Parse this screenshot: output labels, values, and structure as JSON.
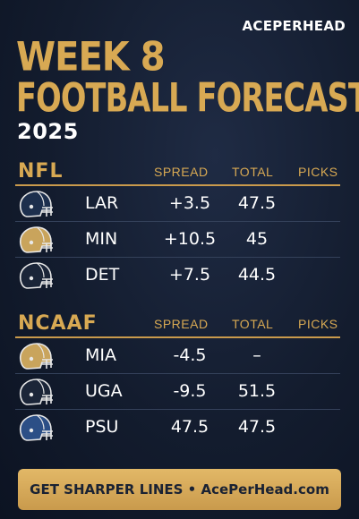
{
  "brand": "ACEPERHEAD",
  "title_line1": "WEEK 8",
  "title_line2": "FOOTBALL FORECAST",
  "year": "2025",
  "columns": {
    "spread": "SPREAD",
    "total": "TOTAL",
    "picks": "PICKS"
  },
  "nfl": {
    "title": "NFL",
    "rows": [
      {
        "team": "LAR",
        "spread": "+3.5",
        "total": "47.5",
        "helmet_color": "#1d2f4d",
        "helmet_icon": "football-helmet-icon"
      },
      {
        "team": "MIN",
        "spread": "+10.5",
        "total": "45",
        "helmet_color": "#c9a45c",
        "helmet_icon": "football-helmet-icon"
      },
      {
        "team": "DET",
        "spread": "+7.5",
        "total": "44.5",
        "helmet_color": "#1b2538",
        "helmet_icon": "football-helmet-icon"
      }
    ]
  },
  "ncaaf": {
    "title": "NCAAF",
    "rows": [
      {
        "team": "MIA",
        "spread": "-4.5",
        "total": "–",
        "helmet_color": "#c9a45c",
        "helmet_icon": "football-helmet-icon"
      },
      {
        "team": "UGA",
        "spread": "-9.5",
        "total": "51.5",
        "helmet_color": "#1b2538",
        "helmet_icon": "football-helmet-icon"
      },
      {
        "team": "PSU",
        "spread": "47.5",
        "total": "47.5",
        "helmet_color": "#2c4f86",
        "helmet_icon": "football-helmet-icon"
      }
    ]
  },
  "cta": "GET SHARPER LINES • AcePerHead.com",
  "colors": {
    "accent_gold": "#d8a953",
    "background": "#131c2e",
    "text": "#ffffff"
  }
}
